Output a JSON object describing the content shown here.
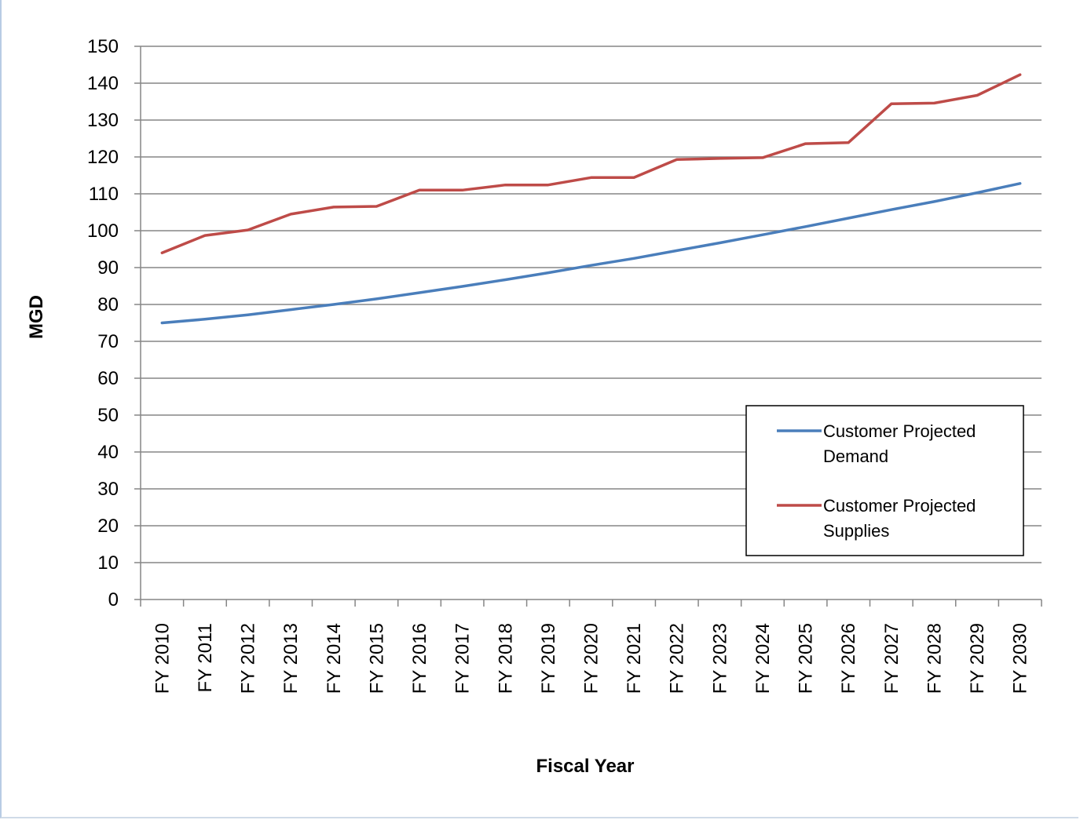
{
  "chart_data": {
    "type": "line",
    "title": "",
    "xlabel": "Fiscal Year",
    "ylabel": "MGD",
    "ylim": [
      0,
      150
    ],
    "yticks": [
      0,
      10,
      20,
      30,
      40,
      50,
      60,
      70,
      80,
      90,
      100,
      110,
      120,
      130,
      140,
      150
    ],
    "grid": true,
    "legend_position": "lower-right",
    "categories": [
      "FY 2010",
      "FY 2011",
      "FY 2012",
      "FY 2013",
      "FY 2014",
      "FY 2015",
      "FY 2016",
      "FY 2017",
      "FY 2018",
      "FY 2019",
      "FY 2020",
      "FY 2021",
      "FY 2022",
      "FY 2023",
      "FY 2024",
      "FY 2025",
      "FY 2026",
      "FY 2027",
      "FY 2028",
      "FY 2029",
      "FY 2030"
    ],
    "series": [
      {
        "name": "Customer Projected Demand",
        "legend_lines": [
          "Customer Projected",
          "Demand"
        ],
        "color": "#4a7ebb",
        "values": [
          75.0,
          76.0,
          77.2,
          78.6,
          80.0,
          81.5,
          83.2,
          84.9,
          86.7,
          88.6,
          90.6,
          92.5,
          94.6,
          96.7,
          98.9,
          101.1,
          103.4,
          105.7,
          107.9,
          110.3,
          112.8
        ]
      },
      {
        "name": "Customer Projected Supplies",
        "legend_lines": [
          "Customer Projected",
          "Supplies"
        ],
        "color": "#be4b48",
        "values": [
          94.0,
          98.7,
          100.2,
          104.5,
          106.4,
          106.6,
          111.0,
          111.0,
          112.4,
          112.4,
          114.4,
          114.4,
          119.3,
          119.6,
          119.8,
          123.6,
          123.9,
          134.4,
          134.6,
          136.7,
          142.3
        ]
      }
    ]
  }
}
